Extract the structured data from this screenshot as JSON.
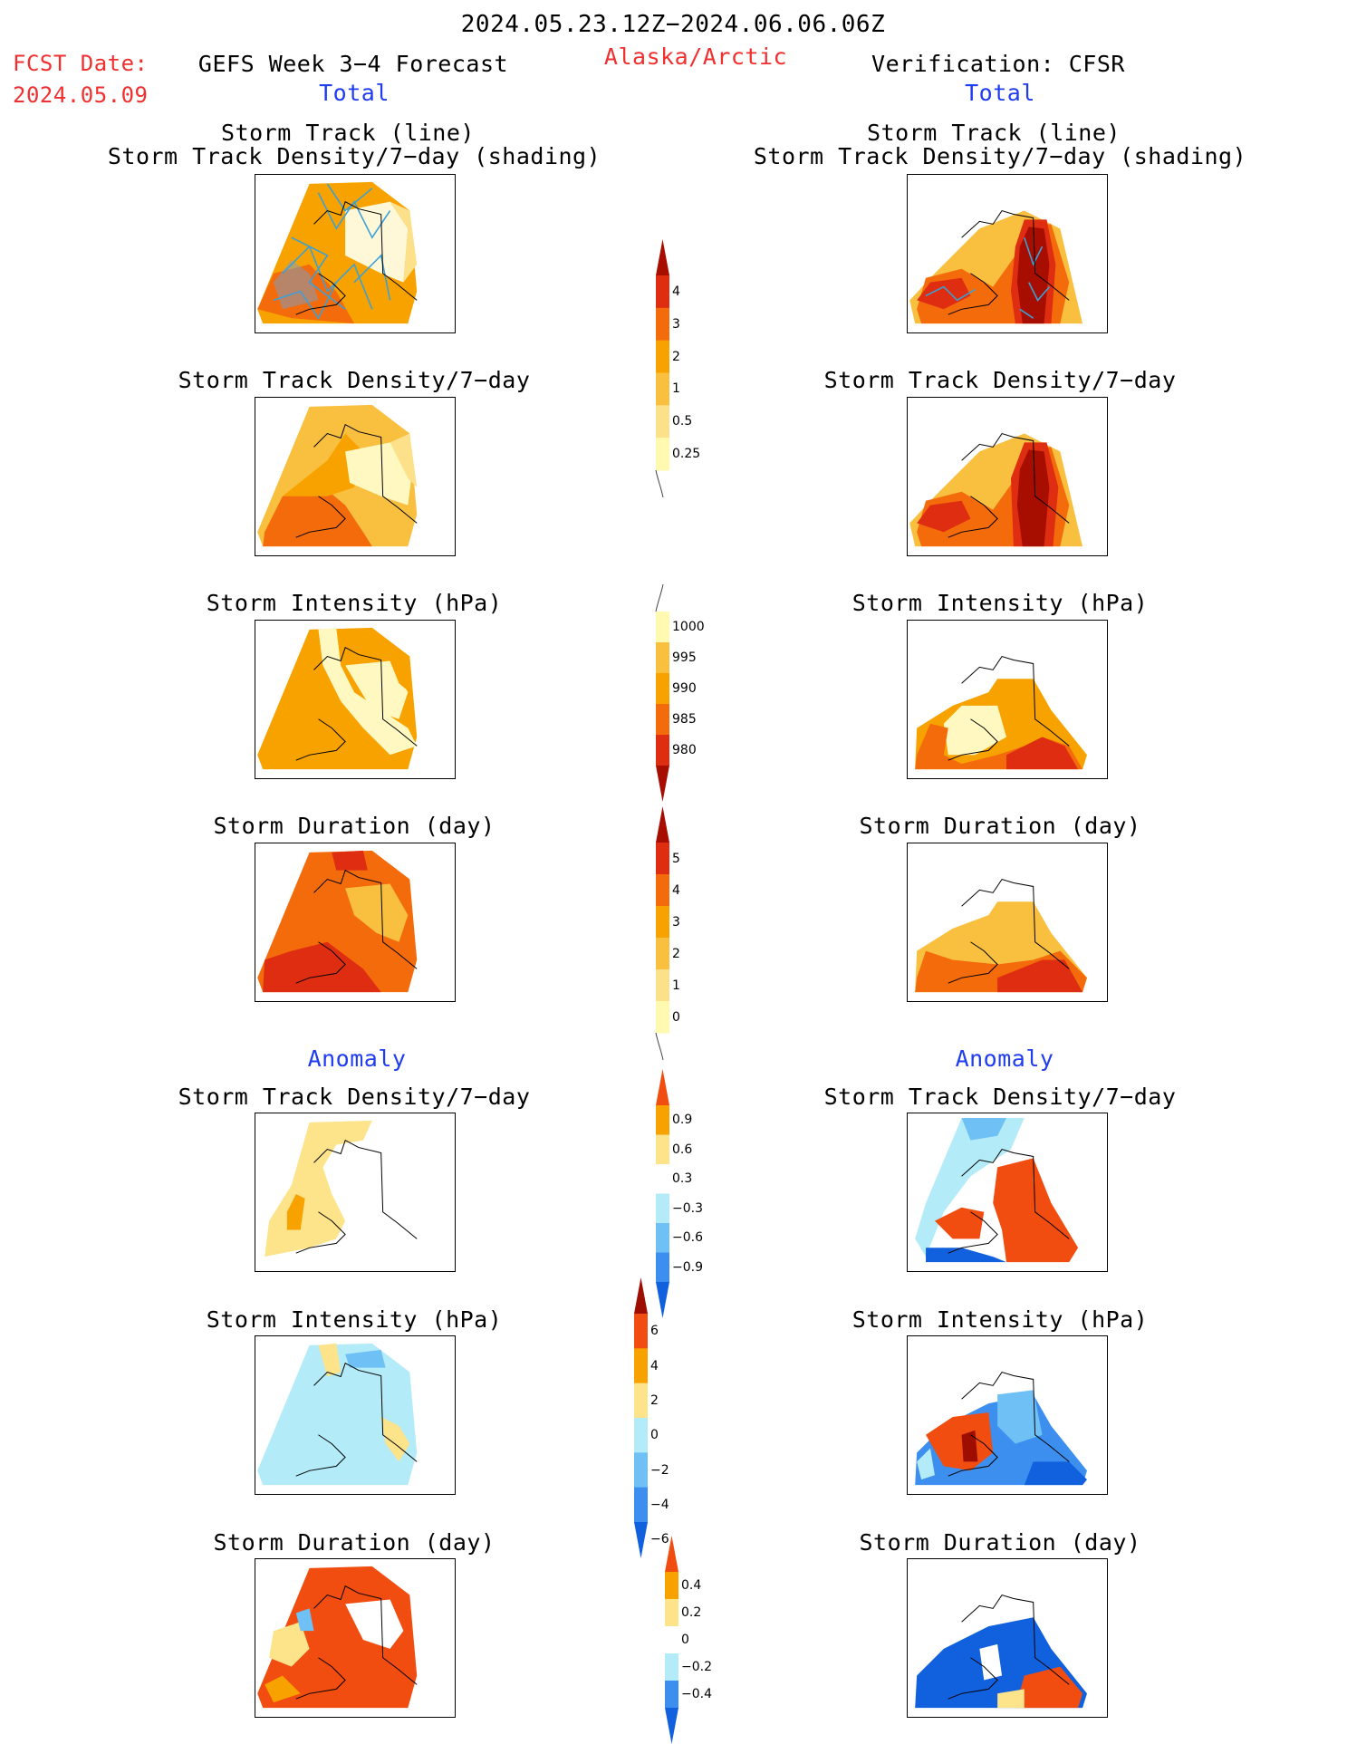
{
  "header": {
    "title": "2024.05.23.12Z−2024.06.06.06Z",
    "fcst_label": "FCST Date:",
    "fcst_date": "2024.05.09",
    "left_title": "GEFS Week 3−4 Forecast",
    "region": "Alaska/Arctic",
    "right_title": "Verification: CFSR"
  },
  "sections": {
    "total": "Total",
    "anomaly": "Anomaly"
  },
  "panel_titles": {
    "track_line": "Storm Track (line)",
    "track_shading": "Storm Track Density/7−day (shading)",
    "density": "Storm Track Density/7−day",
    "intensity": "Storm Intensity (hPa)",
    "duration": "Storm Duration (day)"
  },
  "colorbars": {
    "density_total": {
      "labels": [
        "4",
        "3",
        "2",
        "1",
        "0.5",
        "0.25"
      ]
    },
    "intensity_total": {
      "labels": [
        "1000",
        "995",
        "990",
        "985",
        "980"
      ]
    },
    "duration_total": {
      "labels": [
        "5",
        "4",
        "3",
        "2",
        "1",
        "0"
      ]
    },
    "density_anom": {
      "labels": [
        "0.9",
        "0.6",
        "0.3",
        "−0.3",
        "−0.6",
        "−0.9"
      ]
    },
    "intensity_anom": {
      "labels": [
        "6",
        "4",
        "2",
        "0",
        "−2",
        "−4",
        "−6"
      ]
    },
    "duration_anom": {
      "labels": [
        "0.4",
        "0.2",
        "0",
        "−0.2",
        "−0.4"
      ]
    }
  },
  "colors": {
    "total_scale": [
      "#fffab0",
      "#fde08a",
      "#f9c040",
      "#f8a200",
      "#f46b0c",
      "#de2d10",
      "#a80e00"
    ],
    "anom_scale": [
      "#1160de",
      "#3c8fef",
      "#6ec0f5",
      "#b3ecf8",
      "#ffffff",
      "#fde38a",
      "#f8a200",
      "#f24d10",
      "#9e0e00"
    ]
  }
}
